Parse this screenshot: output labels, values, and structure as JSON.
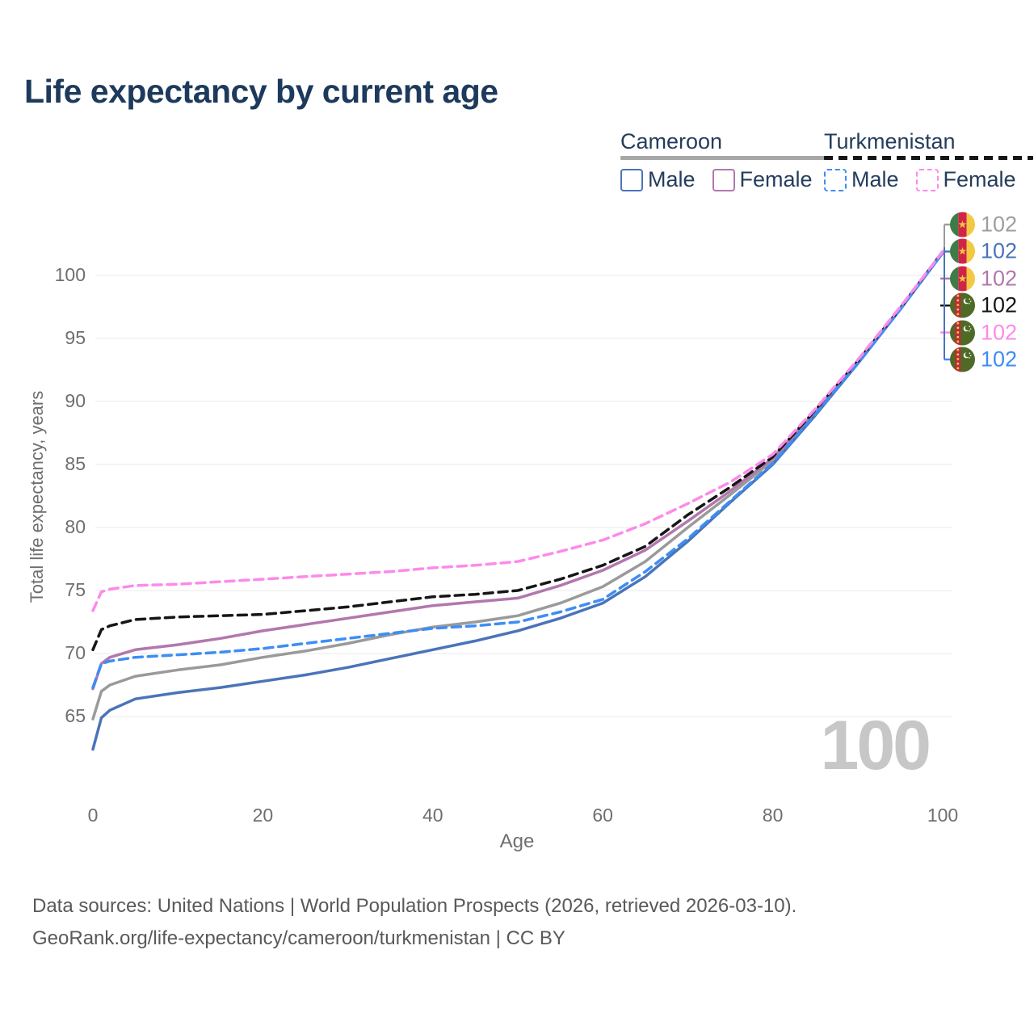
{
  "title": "Life expectancy by current age",
  "legend": {
    "groups": [
      {
        "label": "Cameroon",
        "underline_style": "solid",
        "underline_color": "#a7a7a7",
        "items": [
          {
            "label": "Male",
            "color": "#4a74b8",
            "dash": false
          },
          {
            "label": "Female",
            "color": "#b277ad",
            "dash": false
          }
        ]
      },
      {
        "label": "Turkmenistan",
        "underline_style": "dashed",
        "underline_color": "#161616",
        "items": [
          {
            "label": "Male",
            "color": "#3d8df6",
            "dash": true
          },
          {
            "label": "Female",
            "color": "#fd8ae9",
            "dash": true
          }
        ]
      }
    ]
  },
  "chart_data": {
    "type": "line",
    "title": "Life expectancy by current age",
    "xlabel": "Age",
    "ylabel": "Total life expectancy, years",
    "xlim": [
      0,
      100
    ],
    "ylim": [
      62,
      103
    ],
    "xticks": [
      0,
      20,
      40,
      60,
      80,
      100
    ],
    "yticks": [
      65,
      70,
      75,
      80,
      85,
      90,
      95,
      100
    ],
    "grid": "horizontal",
    "legend_position": "top-right",
    "x": [
      0,
      1,
      2,
      5,
      10,
      15,
      20,
      25,
      30,
      35,
      40,
      45,
      50,
      55,
      60,
      65,
      70,
      75,
      80,
      85,
      90,
      95,
      100
    ],
    "series": [
      {
        "name": "Cameroon Total",
        "color": "#9a9a9a",
        "dash": false,
        "values": [
          64.8,
          67.0,
          67.5,
          68.2,
          68.7,
          69.1,
          69.7,
          70.2,
          70.8,
          71.5,
          72.1,
          72.5,
          73.0,
          74.0,
          75.3,
          77.3,
          80.0,
          82.6,
          85.3,
          89.1,
          93.1,
          97.4,
          101.8
        ]
      },
      {
        "name": "Cameroon Male",
        "color": "#4a74b8",
        "dash": false,
        "values": [
          62.4,
          64.9,
          65.5,
          66.4,
          66.9,
          67.3,
          67.8,
          68.3,
          68.9,
          69.6,
          70.3,
          71.0,
          71.8,
          72.8,
          74.0,
          76.1,
          78.9,
          82.0,
          85.0,
          88.9,
          93.0,
          97.3,
          101.8
        ]
      },
      {
        "name": "Cameroon Female",
        "color": "#b277ad",
        "dash": false,
        "values": [
          67.2,
          69.2,
          69.7,
          70.3,
          70.7,
          71.2,
          71.8,
          72.3,
          72.8,
          73.3,
          73.8,
          74.1,
          74.4,
          75.4,
          76.6,
          78.2,
          80.5,
          82.9,
          85.5,
          89.2,
          93.2,
          97.4,
          101.9
        ]
      },
      {
        "name": "Turkmenistan Total",
        "color": "#161616",
        "dash": true,
        "values": [
          70.3,
          71.9,
          72.2,
          72.7,
          72.9,
          73.0,
          73.1,
          73.4,
          73.7,
          74.1,
          74.5,
          74.7,
          75.0,
          75.9,
          77.0,
          78.5,
          81.0,
          83.2,
          85.6,
          89.3,
          93.2,
          97.4,
          101.9
        ]
      },
      {
        "name": "Turkmenistan Male",
        "color": "#3d8df6",
        "dash": true,
        "values": [
          67.3,
          69.2,
          69.4,
          69.7,
          69.9,
          70.1,
          70.4,
          70.8,
          71.2,
          71.6,
          72.0,
          72.2,
          72.5,
          73.3,
          74.3,
          76.5,
          79.1,
          82.1,
          85.1,
          89.0,
          93.0,
          97.3,
          101.8
        ]
      },
      {
        "name": "Turkmenistan Female",
        "color": "#fd8ae9",
        "dash": true,
        "values": [
          73.4,
          74.9,
          75.1,
          75.4,
          75.5,
          75.7,
          75.9,
          76.1,
          76.3,
          76.5,
          76.8,
          77.0,
          77.3,
          78.1,
          79.0,
          80.3,
          81.9,
          83.6,
          85.8,
          89.4,
          93.3,
          97.5,
          101.9
        ]
      }
    ]
  },
  "end_labels": [
    {
      "country": "cameroon",
      "value": "102",
      "color": "#9e9e9e"
    },
    {
      "country": "cameroon",
      "value": "102",
      "color": "#4a74b8"
    },
    {
      "country": "cameroon",
      "value": "102",
      "color": "#b277ad"
    },
    {
      "country": "turkmenistan",
      "value": "102",
      "color": "#161616"
    },
    {
      "country": "turkmenistan",
      "value": "102",
      "color": "#fd8ae9"
    },
    {
      "country": "turkmenistan",
      "value": "102",
      "color": "#3d8df6"
    }
  ],
  "watermark": "100",
  "footer": {
    "line1": "Data sources: United Nations | World Population Prospects (2026, retrieved 2026-03-10).",
    "line2": "GeoRank.org/life-expectancy/cameroon/turkmenistan | CC BY"
  }
}
